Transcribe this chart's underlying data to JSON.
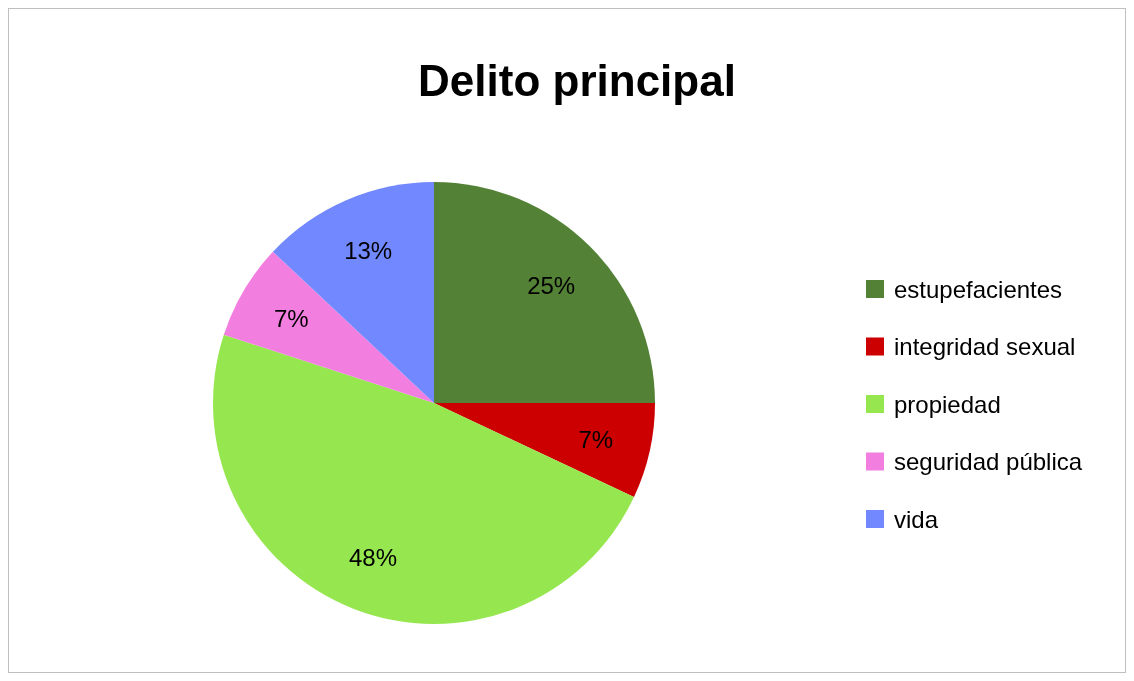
{
  "chart_data": {
    "type": "pie",
    "title": "Delito principal",
    "categories": [
      "estupefacientes",
      "integridad sexual",
      "propiedad",
      "seguridad pública",
      "vida"
    ],
    "values": [
      25,
      7,
      48,
      7,
      13
    ],
    "colors": [
      "#538135",
      "#cc0000",
      "#95e64f",
      "#f27ee0",
      "#7288ff"
    ],
    "value_labels": [
      "25%",
      "7%",
      "48%",
      "7%",
      "13%"
    ],
    "legend": "right"
  }
}
